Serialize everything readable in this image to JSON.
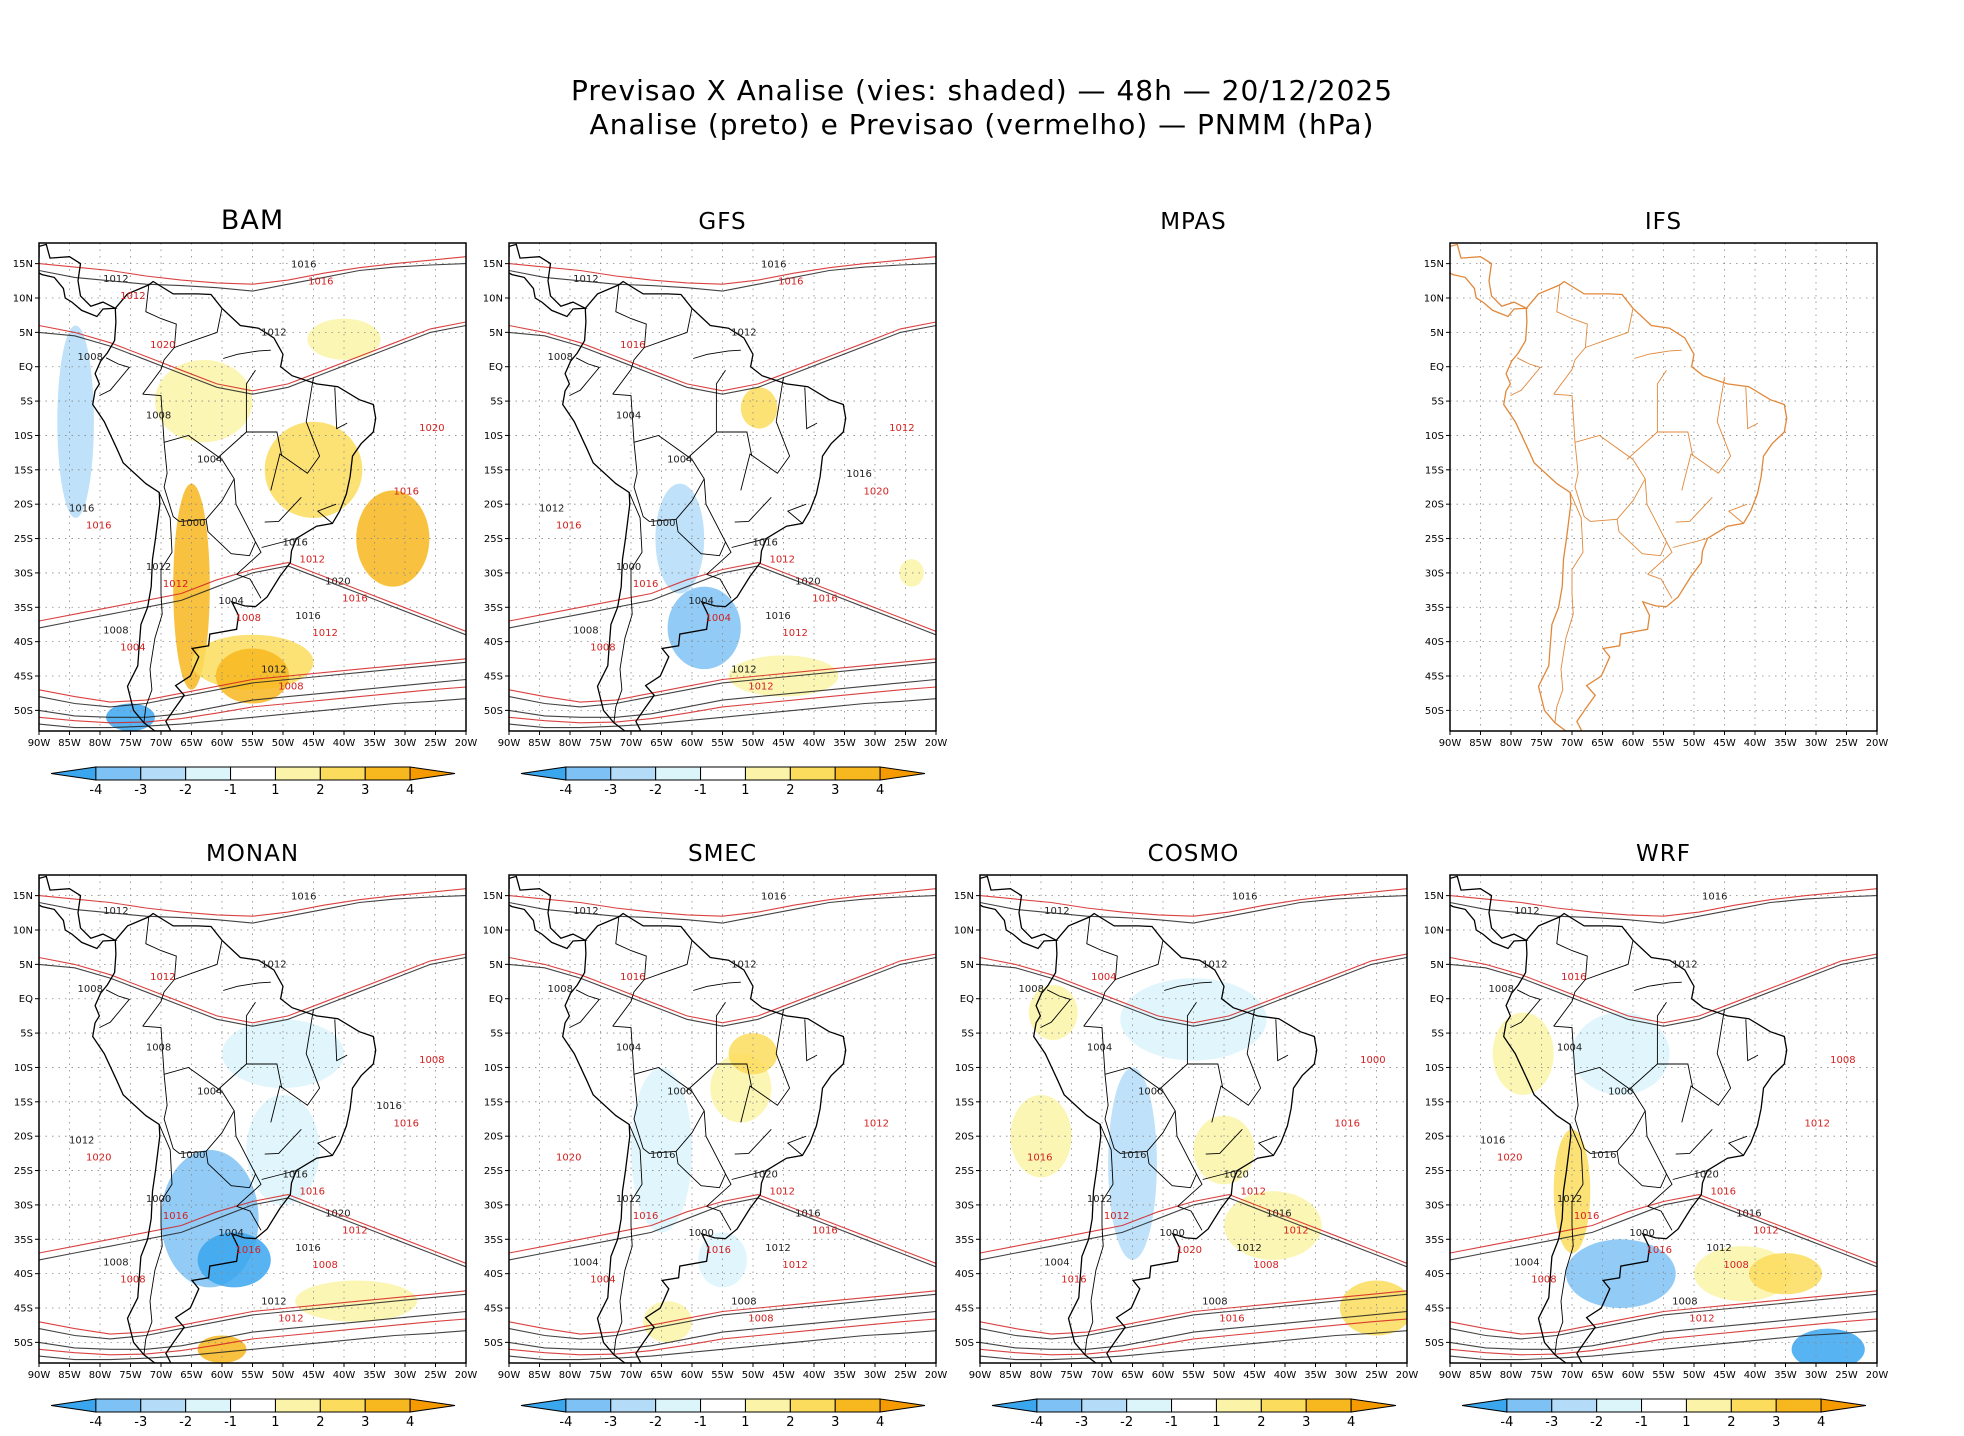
{
  "title": {
    "line1": "Previsao X Analise (vies: shaded) — 48h — 20/12/2025",
    "line2": "Analise (preto) e Previsao (vermelho) — PNMM (hPa)"
  },
  "chart_data": {
    "type": "heatmap",
    "description_units": "hPa",
    "x_ticks": [
      "90W",
      "85W",
      "80W",
      "75W",
      "70W",
      "65W",
      "60W",
      "55W",
      "50W",
      "45W",
      "40W",
      "35W",
      "30W",
      "25W",
      "20W"
    ],
    "y_ticks": [
      "15N",
      "10N",
      "5N",
      "EQ",
      "5S",
      "10S",
      "15S",
      "20S",
      "25S",
      "30S",
      "35S",
      "40S",
      "45S",
      "50S"
    ],
    "colorbar": {
      "labels": [
        "-4",
        "-3",
        "-2",
        "-1",
        "1",
        "2",
        "3",
        "4"
      ],
      "colors": [
        "#3aa6ee",
        "#7ec2f5",
        "#b4dcf8",
        "#dcf5fb",
        "#ffffff",
        "#fbf4a8",
        "#fbdc5c",
        "#f7b71e",
        "#f59a00"
      ]
    },
    "colors": {
      "analysis_contour": "#222222",
      "forecast_contour": "#d42020",
      "coastline": "#000000",
      "ifs_coastline": "#e0883a"
    },
    "panels": [
      {
        "id": "bam",
        "title": "BAM",
        "has_map": true,
        "has_colorbar": true,
        "labels_black": [
          "1016",
          "1012",
          "1012",
          "1008",
          "1008",
          "1004",
          "1000",
          "1016",
          "1020",
          "1016",
          "1012",
          "1008",
          "1004",
          "1012",
          "1016"
        ],
        "labels_red": [
          "1012",
          "1016",
          "1012",
          "1008",
          "1004",
          "1008",
          "1012",
          "1016",
          "1016",
          "1020",
          "1020",
          "1016",
          "1012"
        ]
      },
      {
        "id": "gfs",
        "title": "GFS",
        "has_map": true,
        "has_colorbar": true,
        "labels_black": [
          "1016",
          "1012",
          "1012",
          "1008",
          "1004",
          "1004",
          "1000",
          "1016",
          "1020",
          "1016",
          "1012",
          "1008",
          "1004",
          "1000",
          "1012",
          "1016"
        ],
        "labels_red": [
          "1012",
          "1016",
          "1012",
          "1012",
          "1008",
          "1004",
          "1016",
          "1016",
          "1020",
          "1016",
          "1012",
          "1016"
        ]
      },
      {
        "id": "mpas",
        "title": "MPAS",
        "has_map": false,
        "has_colorbar": false,
        "labels_black": [],
        "labels_red": []
      },
      {
        "id": "ifs",
        "title": "IFS",
        "has_map": true,
        "has_colorbar": false,
        "labels_black": [],
        "labels_red": []
      },
      {
        "id": "monan",
        "title": "MONAN",
        "has_map": true,
        "has_colorbar": true,
        "labels_black": [
          "1016",
          "1012",
          "1012",
          "1008",
          "1008",
          "1004",
          "1000",
          "1016",
          "1020",
          "1016",
          "1012",
          "1008",
          "1004",
          "1000",
          "1012",
          "1016"
        ],
        "labels_red": [
          "1016",
          "1012",
          "1008",
          "1012",
          "1008",
          "1016",
          "1016",
          "1020",
          "1016",
          "1012",
          "1008"
        ]
      },
      {
        "id": "smec",
        "title": "SMEC",
        "has_map": true,
        "has_colorbar": true,
        "labels_black": [
          "1016",
          "1012",
          "1012",
          "1008",
          "1004",
          "1000",
          "1016",
          "1020",
          "1016",
          "1012",
          "1008",
          "1004",
          "1000",
          "1012"
        ],
        "labels_red": [
          "1012",
          "1016",
          "1012",
          "1008",
          "1004",
          "1016",
          "1016",
          "1020",
          "1012",
          "1016"
        ]
      },
      {
        "id": "cosmo",
        "title": "COSMO",
        "has_map": true,
        "has_colorbar": true,
        "labels_black": [
          "1016",
          "1012",
          "1012",
          "1008",
          "1004",
          "1000",
          "1016",
          "1020",
          "1016",
          "1012",
          "1008",
          "1004",
          "1000",
          "1012"
        ],
        "labels_red": [
          "1012",
          "1012",
          "1008",
          "1016",
          "1016",
          "1020",
          "1012",
          "1016",
          "1016",
          "1004",
          "1000"
        ]
      },
      {
        "id": "wrf",
        "title": "WRF",
        "has_map": true,
        "has_colorbar": true,
        "labels_black": [
          "1016",
          "1012",
          "1012",
          "1008",
          "1004",
          "1000",
          "1016",
          "1020",
          "1016",
          "1012",
          "1008",
          "1004",
          "1000",
          "1012",
          "1016"
        ],
        "labels_red": [
          "1016",
          "1012",
          "1008",
          "1012",
          "1008",
          "1016",
          "1016",
          "1020",
          "1012",
          "1016",
          "1008"
        ]
      }
    ]
  }
}
